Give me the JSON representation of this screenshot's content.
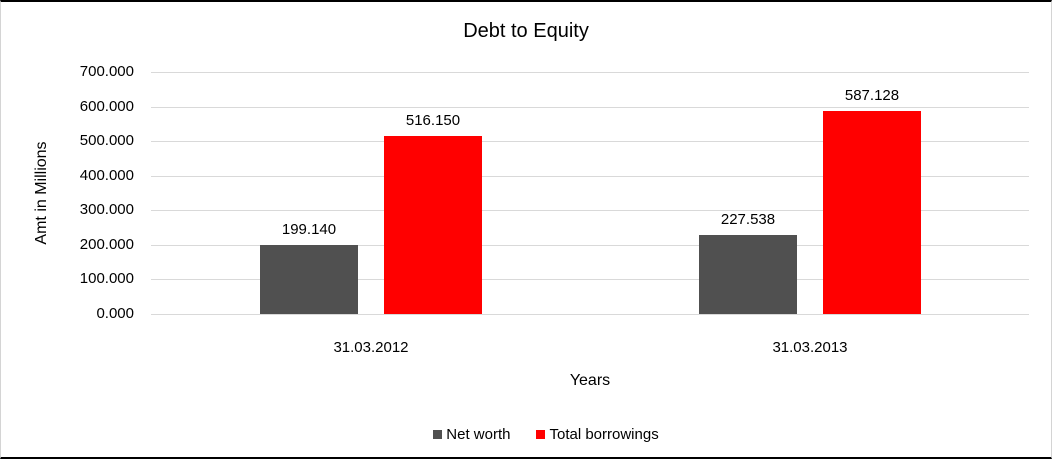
{
  "chart": {
    "title": "Debt to Equity",
    "y_axis_title": "Amt in Millions",
    "x_axis_title": "Years"
  },
  "chart_data": {
    "type": "bar",
    "title": "Debt to Equity",
    "xlabel": "Years",
    "ylabel": "Amt in Millions",
    "categories": [
      "31.03.2012",
      "31.03.2013"
    ],
    "series": [
      {
        "name": "Net worth",
        "color": "#505050",
        "values": [
          199140,
          227538
        ],
        "value_labels": [
          "199.140",
          "227.538"
        ]
      },
      {
        "name": "Total borrowings",
        "color": "#ff0000",
        "values": [
          516150,
          587128
        ],
        "value_labels": [
          "516.150",
          "587.128"
        ]
      }
    ],
    "ylim": [
      0,
      700000
    ],
    "ytick_labels": [
      "0.000",
      "100.000",
      "200.000",
      "300.000",
      "400.000",
      "500.000",
      "600.000",
      "700.000"
    ],
    "grid": true,
    "gridline_color": "#d9d9d9",
    "legend_position": "bottom"
  }
}
